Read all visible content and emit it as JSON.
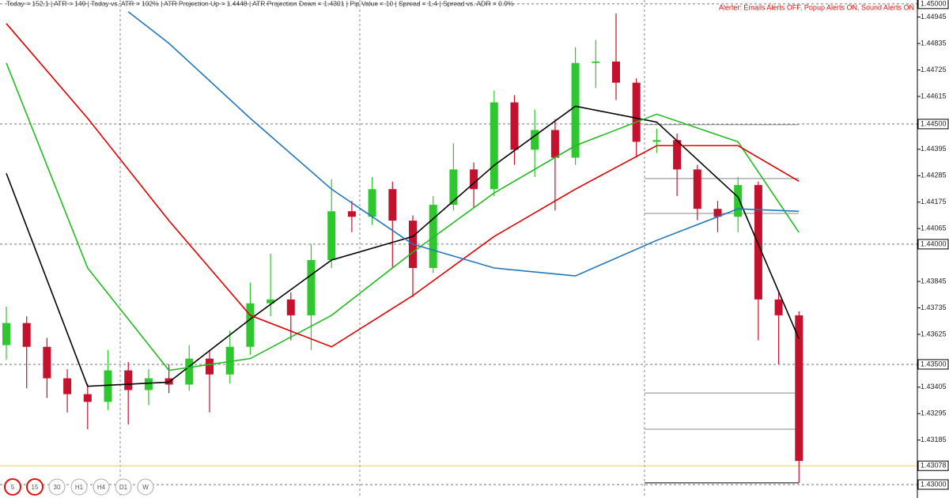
{
  "header": {
    "info": "Today = 152.1  |  ATR = 149  |  Today vs. ATR = 102%  |  ATR Projection Up = 1.4448  |  ATR Projection Down = 1.4301  |  Pip Value = 10  |  Spread = 1.4  |  Spread vs. ADR = 0.9%",
    "alerter": "Alerter:  Emails Alerts OFF,  Popup Alerts ON,  Sound Alerts ON"
  },
  "timeframes": [
    {
      "label": "5",
      "active": true
    },
    {
      "label": "15",
      "active": true
    },
    {
      "label": "30",
      "active": false
    },
    {
      "label": "H1",
      "active": false
    },
    {
      "label": "H4",
      "active": false
    },
    {
      "label": "D1",
      "active": false
    },
    {
      "label": "W",
      "active": false
    }
  ],
  "chart_data": {
    "type": "candlestick",
    "up_color": "#2ec82e",
    "down_color": "#c4122e",
    "open": [
      1.4358,
      1.43672,
      1.43573,
      1.43442,
      1.43376,
      1.43344,
      1.43475,
      1.43393,
      1.43442,
      1.43416,
      1.43524,
      1.43458,
      1.43573,
      1.43754,
      1.4377,
      1.43704,
      1.43934,
      1.44137,
      1.44114,
      1.44229,
      1.44098,
      1.43901,
      1.44164,
      1.44311,
      1.44229,
      1.4459,
      1.44393,
      1.44475,
      1.4436,
      1.44754,
      1.4476,
      1.44672,
      1.44426,
      1.44433,
      1.44311,
      1.44147,
      1.44114,
      1.44246,
      1.4377,
      1.43704
    ],
    "high": [
      1.4374,
      1.437,
      1.4361,
      1.4348,
      1.4342,
      1.4356,
      1.4351,
      1.4348,
      1.435,
      1.4358,
      1.4356,
      1.4364,
      1.4384,
      1.4396,
      1.438,
      1.44,
      1.4427,
      1.4418,
      1.4428,
      1.4426,
      1.4412,
      1.442,
      1.4442,
      1.4434,
      1.4464,
      1.4462,
      1.4456,
      1.4452,
      1.4482,
      1.4485,
      1.4496,
      1.4469,
      1.4448,
      1.4446,
      1.4433,
      1.4418,
      1.4428,
      1.4426,
      1.438,
      1.4372
    ],
    "low": [
      1.4352,
      1.434,
      1.4336,
      1.433,
      1.4323,
      1.4331,
      1.4325,
      1.4333,
      1.4338,
      1.4339,
      1.433,
      1.4342,
      1.4354,
      1.437,
      1.436,
      1.4356,
      1.439,
      1.4405,
      1.4408,
      1.439,
      1.4378,
      1.4388,
      1.4414,
      1.4415,
      1.442,
      1.4433,
      1.4428,
      1.4414,
      1.4433,
      1.4465,
      1.446,
      1.4436,
      1.4438,
      1.442,
      1.441,
      1.4405,
      1.4405,
      1.436,
      1.435,
      1.43007
    ],
    "close": [
      1.43672,
      1.43573,
      1.43442,
      1.43376,
      1.43344,
      1.43475,
      1.43393,
      1.43442,
      1.43416,
      1.43524,
      1.43458,
      1.43573,
      1.43754,
      1.4377,
      1.43704,
      1.43934,
      1.44137,
      1.44114,
      1.44229,
      1.44098,
      1.43901,
      1.44164,
      1.44311,
      1.44229,
      1.4459,
      1.44393,
      1.44475,
      1.4436,
      1.44754,
      1.4476,
      1.44672,
      1.44426,
      1.44433,
      1.44311,
      1.44147,
      1.44114,
      1.44246,
      1.4377,
      1.43704,
      1.43098
    ],
    "series": [
      {
        "color": "#000000",
        "x": [
          0,
          4,
          8,
          12,
          16,
          20,
          24,
          28,
          32,
          36,
          39
        ],
        "values": [
          1.44295,
          1.43409,
          1.43426,
          1.43688,
          1.43934,
          1.44032,
          1.44328,
          1.44574,
          1.44508,
          1.44196,
          1.43606
        ]
      },
      {
        "color": "#22bb22",
        "x": [
          0,
          4,
          8,
          12,
          16,
          20,
          24,
          28,
          32,
          36,
          39
        ],
        "values": [
          1.44754,
          1.43901,
          1.43475,
          1.43524,
          1.43704,
          1.43967,
          1.44213,
          1.4441,
          1.44541,
          1.44426,
          1.44049
        ]
      },
      {
        "color": "#e00000",
        "x": [
          0,
          4,
          8,
          12,
          16,
          20,
          24,
          28,
          32,
          36,
          39
        ],
        "values": [
          1.44918,
          1.44524,
          1.44098,
          1.43704,
          1.43573,
          1.43786,
          1.44032,
          1.44229,
          1.4441,
          1.4441,
          1.44262
        ]
      },
      {
        "color": "#2277bb",
        "x": [
          6,
          8,
          12,
          16,
          20,
          24,
          28,
          32,
          36,
          39
        ],
        "values": [
          1.44967,
          1.44836,
          1.44524,
          1.44229,
          1.44,
          1.43901,
          1.43868,
          1.44016,
          1.44147,
          1.44137
        ]
      }
    ],
    "levels": [
      1.44497,
      1.44273,
      1.44128,
      1.43381,
      1.4323,
      1.43007
    ],
    "current_price": 1.43078,
    "ylim": [
      1.42944,
      1.45016
    ],
    "yticks": [
      {
        "value": 1.45,
        "label": "1.45000"
      },
      1.44945,
      1.44835,
      1.44725,
      1.44615,
      {
        "value": 1.445,
        "label": "1.44500"
      },
      1.44395,
      1.44285,
      1.44175,
      1.44065,
      {
        "value": 1.44,
        "label": "1.44000"
      },
      1.43845,
      1.43735,
      1.43625,
      {
        "value": 1.435,
        "label": "1.43500"
      },
      1.43405,
      1.43295,
      1.43185,
      {
        "value": 1.43,
        "label": "1.43000"
      }
    ]
  }
}
